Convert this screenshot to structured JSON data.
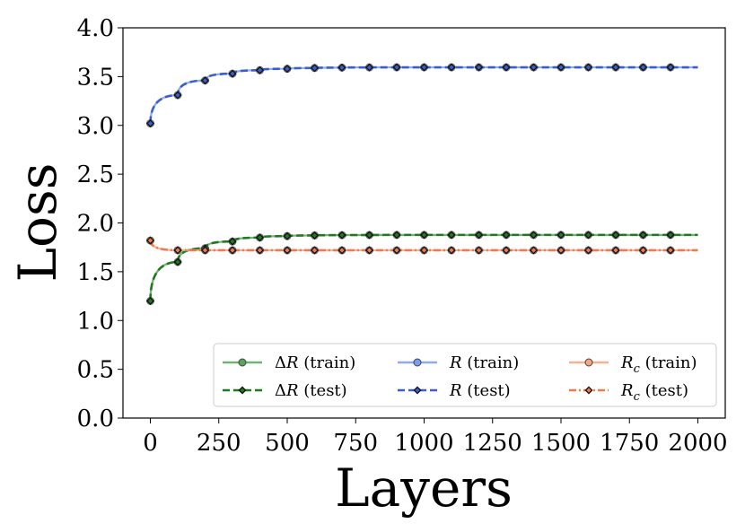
{
  "chart_data": {
    "type": "line",
    "xlabel": "Layers",
    "ylabel": "Loss",
    "xlim": [
      -100,
      2100
    ],
    "ylim": [
      0.0,
      4.0
    ],
    "xticks": [
      0,
      250,
      500,
      750,
      1000,
      1250,
      1500,
      1750,
      2000
    ],
    "xtick_labels": [
      "0",
      "250",
      "500",
      "750",
      "1000",
      "1250",
      "1500",
      "1750",
      "2000"
    ],
    "yticks": [
      0.0,
      0.5,
      1.0,
      1.5,
      2.0,
      2.5,
      3.0,
      3.5,
      4.0
    ],
    "ytick_labels": [
      "0.0",
      "0.5",
      "1.0",
      "1.5",
      "2.0",
      "2.5",
      "3.0",
      "3.5",
      "4.0"
    ],
    "grid": false,
    "legend_position": "lower-right",
    "marker_x": [
      0,
      100,
      200,
      300,
      400,
      500,
      600,
      700,
      800,
      900,
      1000,
      1100,
      1200,
      1300,
      1400,
      1500,
      1600,
      1700,
      1800,
      1900
    ],
    "series": [
      {
        "name": "ΔR (train)",
        "color": "#5aa55a",
        "style": "solid",
        "marker": "circle",
        "values": [
          1.2,
          1.6,
          1.74,
          1.81,
          1.85,
          1.865,
          1.872,
          1.875,
          1.876,
          1.877,
          1.877,
          1.877,
          1.877,
          1.877,
          1.877,
          1.877,
          1.877,
          1.877,
          1.877,
          1.877
        ]
      },
      {
        "name": "ΔR (test)",
        "color": "#1f7a1f",
        "style": "dashed",
        "marker": "diamond",
        "values": [
          1.2,
          1.6,
          1.74,
          1.81,
          1.85,
          1.865,
          1.872,
          1.875,
          1.876,
          1.877,
          1.877,
          1.877,
          1.877,
          1.877,
          1.877,
          1.877,
          1.877,
          1.877,
          1.877,
          1.877
        ]
      },
      {
        "name": "R (train)",
        "color": "#7b9cf0",
        "style": "solid",
        "marker": "circle",
        "values": [
          3.02,
          3.31,
          3.46,
          3.53,
          3.565,
          3.58,
          3.588,
          3.592,
          3.594,
          3.595,
          3.595,
          3.595,
          3.595,
          3.595,
          3.595,
          3.595,
          3.595,
          3.595,
          3.595,
          3.595
        ]
      },
      {
        "name": "R (test)",
        "color": "#3a5fcd",
        "style": "dashed",
        "marker": "diamond",
        "values": [
          3.02,
          3.31,
          3.46,
          3.53,
          3.565,
          3.58,
          3.588,
          3.592,
          3.594,
          3.595,
          3.595,
          3.595,
          3.595,
          3.595,
          3.595,
          3.595,
          3.595,
          3.595,
          3.595,
          3.595
        ]
      },
      {
        "name": "Rc (train)",
        "color": "#f4a582",
        "style": "solid",
        "marker": "circle",
        "values": [
          1.82,
          1.72,
          1.72,
          1.72,
          1.72,
          1.72,
          1.72,
          1.72,
          1.72,
          1.72,
          1.72,
          1.72,
          1.72,
          1.72,
          1.72,
          1.72,
          1.72,
          1.72,
          1.72,
          1.72
        ]
      },
      {
        "name": "Rc (test)",
        "color": "#f07a4a",
        "style": "dashdot",
        "marker": "diamond",
        "values": [
          1.82,
          1.72,
          1.72,
          1.72,
          1.72,
          1.72,
          1.72,
          1.72,
          1.72,
          1.72,
          1.72,
          1.72,
          1.72,
          1.72,
          1.72,
          1.72,
          1.72,
          1.72,
          1.72,
          1.72
        ]
      }
    ],
    "legend_entries": [
      {
        "symbol": "Δ",
        "var": "R",
        "sub": "",
        "suffix": " (train)"
      },
      {
        "symbol": "Δ",
        "var": "R",
        "sub": "",
        "suffix": " (test)"
      },
      {
        "symbol": "",
        "var": "R",
        "sub": "",
        "suffix": " (train)"
      },
      {
        "symbol": "",
        "var": "R",
        "sub": "",
        "suffix": " (test)"
      },
      {
        "symbol": "",
        "var": "R",
        "sub": "c",
        "suffix": " (train)"
      },
      {
        "symbol": "",
        "var": "R",
        "sub": "c",
        "suffix": " (test)"
      }
    ]
  }
}
